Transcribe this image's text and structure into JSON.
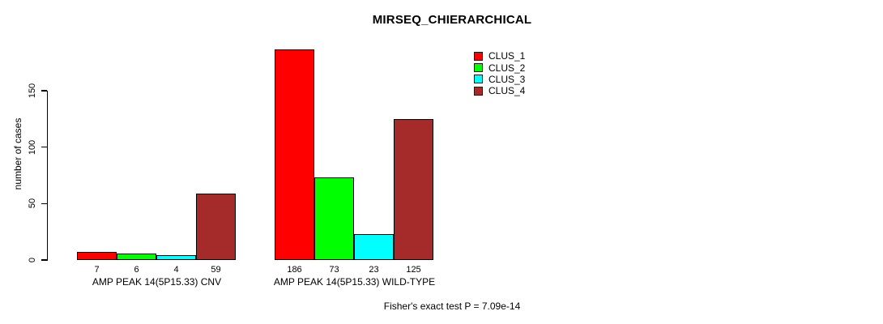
{
  "title": "MIRSEQ_CHIERARCHICAL",
  "footer": "Fisher's exact test P = 7.09e-14",
  "chart_data": {
    "type": "bar",
    "title": "MIRSEQ_CHIERARCHICAL",
    "ylabel": "number of cases",
    "xlabel": "",
    "yticks": [
      0,
      50,
      100,
      150
    ],
    "ylim": [
      0,
      186
    ],
    "grid": false,
    "legend_position": "top-right",
    "series": [
      "CLUS_1",
      "CLUS_2",
      "CLUS_3",
      "CLUS_4"
    ],
    "series_colors": [
      "#FF0000",
      "#00FF00",
      "#00FFFF",
      "#A52A2A"
    ],
    "bar_border_color": "#000000",
    "groups": [
      {
        "label": "AMP PEAK 14(5P15.33) CNV",
        "values": [
          7,
          6,
          4,
          59
        ]
      },
      {
        "label": "AMP PEAK 14(5P15.33) WILD-TYPE",
        "values": [
          186,
          73,
          23,
          125
        ]
      }
    ],
    "annotation": "Fisher's exact test P = 7.09e-14"
  }
}
